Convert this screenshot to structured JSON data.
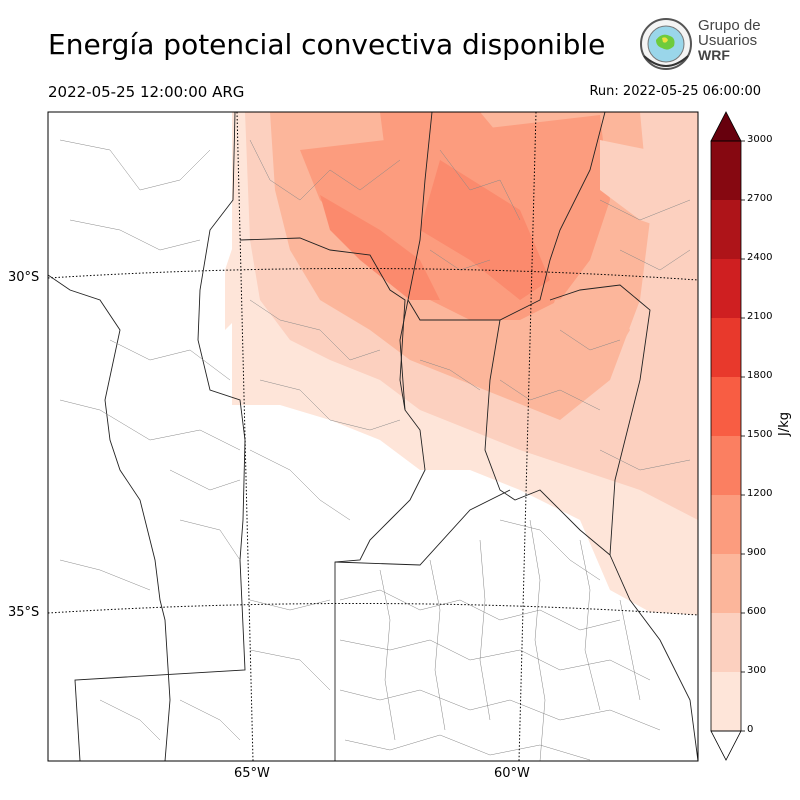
{
  "header": {
    "title": "Energía potencial convectiva disponible",
    "valid_time": "2022-05-25 12:00:00 ARG",
    "run_time": "Run: 2022-05-25 06:00:00"
  },
  "logo": {
    "line1": "Grupo de",
    "line2": "Usuarios",
    "line3": "WRF"
  },
  "map": {
    "lat_labels": [
      "30°S",
      "35°S"
    ],
    "lon_labels": [
      "65°W",
      "60°W"
    ]
  },
  "colorbar": {
    "unit": "J/kg",
    "ticks": [
      "0",
      "300",
      "600",
      "900",
      "1200",
      "1500",
      "1800",
      "2100",
      "2400",
      "2700",
      "3000"
    ],
    "colors": [
      "#fee5d9",
      "#fcd0bf",
      "#fcb69b",
      "#fc9c7e",
      "#fb7f61",
      "#f85d43",
      "#e8392c",
      "#cf1f21",
      "#ae1419",
      "#860811"
    ],
    "extend_high_color": "#67000d"
  }
}
